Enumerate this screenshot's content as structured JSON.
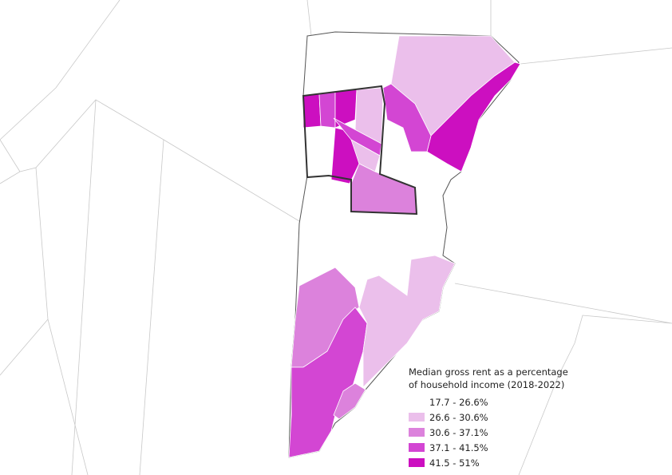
{
  "legend": {
    "title": "Median gross rent as a percentage of household income (2018-2022)",
    "items": [
      {
        "label": "17.7 - 26.6%",
        "color": "#ffffff"
      },
      {
        "label": "26.6 - 30.6%",
        "color": "#ebbfeb"
      },
      {
        "label": "30.6 - 37.1%",
        "color": "#dc82dc"
      },
      {
        "label": "37.1 - 41.5%",
        "color": "#d346d3"
      },
      {
        "label": "41.5 - 51%",
        "color": "#cc0fc0"
      }
    ]
  }
}
